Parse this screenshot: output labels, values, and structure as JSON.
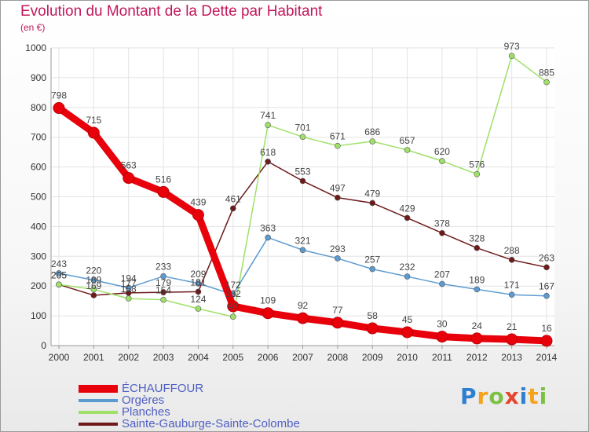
{
  "title": "Evolution du Montant de la Dette par Habitant",
  "subtitle": "(en €)",
  "brand": "Proxiti",
  "chart_data": {
    "type": "line",
    "title": "Evolution du Montant de la Dette par Habitant",
    "subtitle": "(en €)",
    "x": [
      2000,
      2001,
      2002,
      2003,
      2004,
      2005,
      2006,
      2007,
      2008,
      2009,
      2010,
      2011,
      2012,
      2013,
      2014
    ],
    "xlabel": "",
    "ylabel": "",
    "ylim": [
      0,
      1000
    ],
    "yticks": [
      0,
      100,
      200,
      300,
      400,
      500,
      600,
      700,
      800,
      900,
      1000
    ],
    "grid": true,
    "legend_position": "bottom-left",
    "series": [
      {
        "name": "ÉCHAUFFOUR",
        "color": "#e8000b",
        "values": [
          798,
          715,
          563,
          516,
          439,
          132,
          109,
          92,
          77,
          58,
          45,
          30,
          24,
          21,
          16
        ]
      },
      {
        "name": "Orgères",
        "color": "#5c9bd1",
        "values": [
          243,
          220,
          194,
          233,
          209,
          172,
          363,
          321,
          293,
          257,
          232,
          207,
          189,
          171,
          167
        ]
      },
      {
        "name": "Planches",
        "color": "#9ee068",
        "values": [
          205,
          189,
          158,
          154,
          124,
          97,
          741,
          701,
          671,
          686,
          657,
          620,
          576,
          973,
          885
        ]
      },
      {
        "name": "Sainte-Gauburge-Sainte-Colombe",
        "color": "#6e1a1a",
        "values": [
          205,
          169,
          177,
          179,
          181,
          461,
          618,
          553,
          497,
          479,
          429,
          378,
          328,
          288,
          263
        ]
      }
    ]
  }
}
